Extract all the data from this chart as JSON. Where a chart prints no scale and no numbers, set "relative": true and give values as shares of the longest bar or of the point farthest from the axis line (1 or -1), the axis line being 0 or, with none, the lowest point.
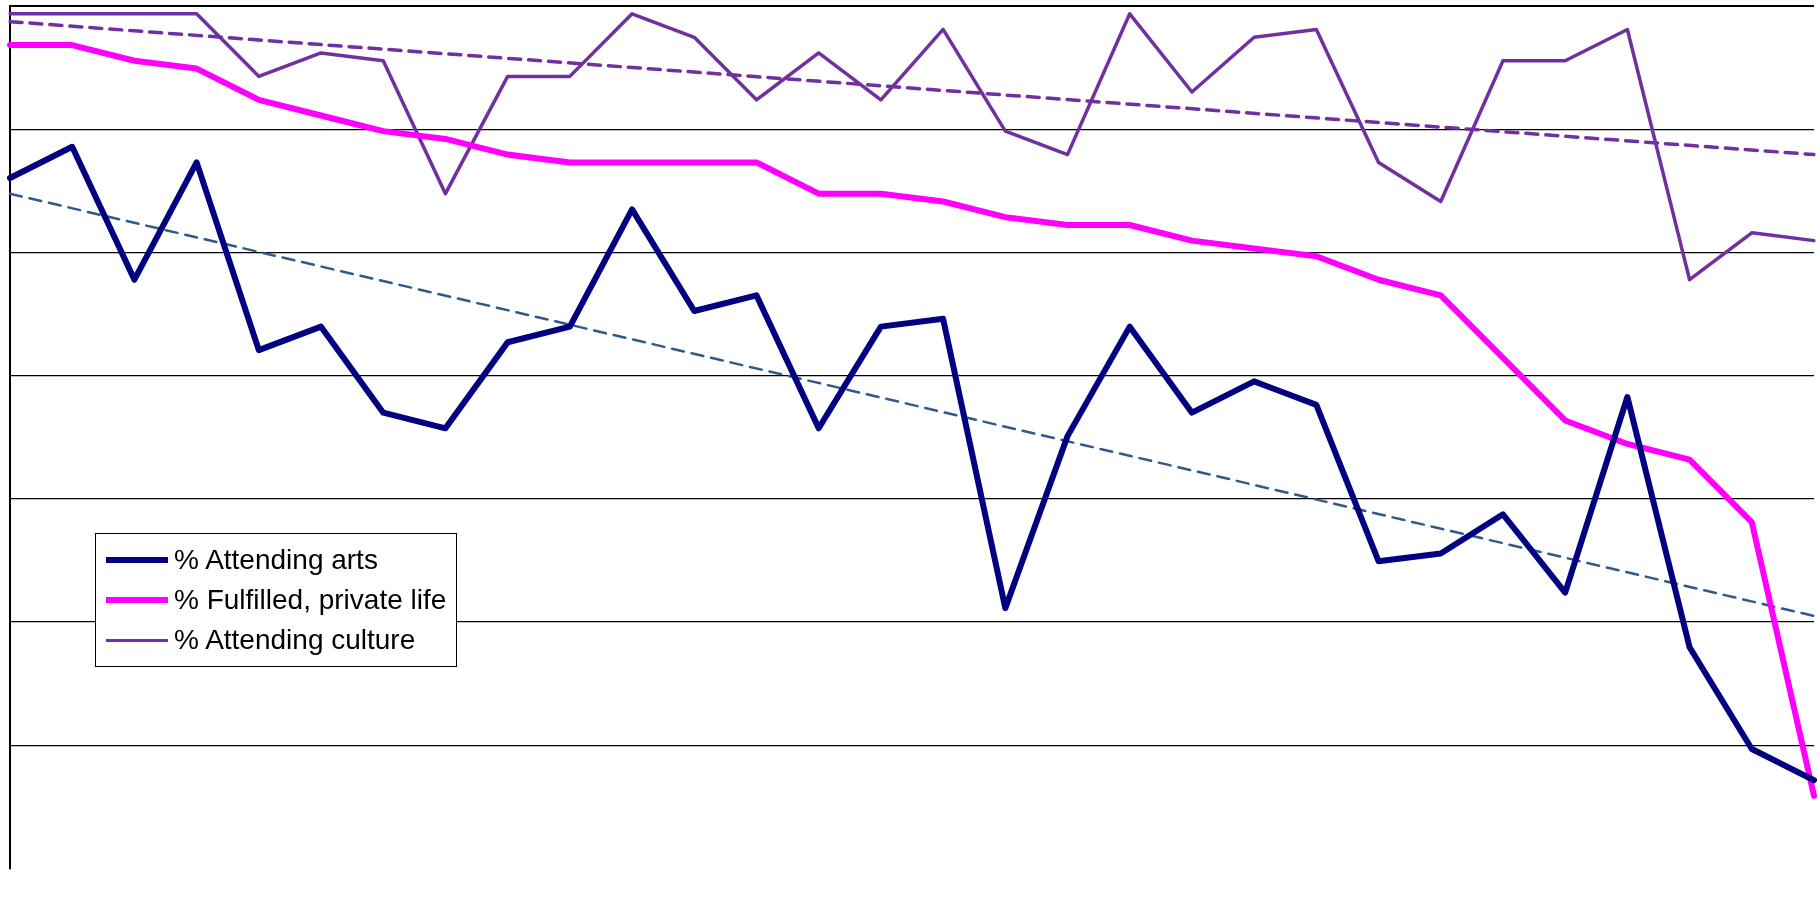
{
  "chart_data": {
    "type": "line",
    "relative": true,
    "grid": "y",
    "legend": "bottom left",
    "marker": "none",
    "categories": [
      null,
      null,
      null,
      null,
      null,
      null,
      null,
      null,
      null,
      null,
      null,
      null,
      null,
      null,
      null,
      null,
      null,
      null,
      null,
      null,
      null,
      null,
      null,
      null,
      null,
      null,
      null,
      null,
      null,
      null
    ],
    "series": [
      {
        "name": "% Attending arts",
        "color": "#000080",
        "values": [
          0.79,
          0.83,
          0.66,
          0.81,
          0.57,
          0.6,
          0.49,
          0.47,
          0.58,
          0.6,
          0.75,
          0.62,
          0.64,
          0.47,
          0.6,
          0.61,
          0.24,
          0.46,
          0.6,
          0.49,
          0.53,
          0.5,
          0.3,
          0.31,
          0.36,
          0.26,
          0.51,
          0.19,
          0.06,
          0.02
        ]
      },
      {
        "name": "% Fulfilled, private life",
        "color": "#ff00ff",
        "values": [
          0.96,
          0.96,
          0.94,
          0.93,
          0.89,
          0.87,
          0.85,
          0.84,
          0.82,
          0.81,
          0.81,
          0.81,
          0.81,
          0.77,
          0.77,
          0.76,
          0.74,
          0.73,
          0.73,
          0.71,
          0.7,
          0.69,
          0.66,
          0.64,
          0.56,
          0.48,
          0.45,
          0.43,
          0.35,
          0
        ]
      },
      {
        "name": "% Attending culture",
        "color": "#7030a0",
        "values": [
          1,
          1,
          1,
          1,
          0.92,
          0.95,
          0.94,
          0.77,
          0.92,
          0.92,
          1,
          0.97,
          0.89,
          0.95,
          0.89,
          0.98,
          0.85,
          0.82,
          1,
          0.9,
          0.97,
          0.98,
          0.81,
          0.76,
          0.94,
          0.94,
          0.98,
          0.66,
          0.72,
          0.71
        ]
      },
      {
        "type": "line",
        "color": "#7030a0",
        "line_style": "dashed",
        "values": [
          0.99,
          null,
          null,
          null,
          null,
          null,
          null,
          null,
          null,
          null,
          null,
          null,
          null,
          null,
          null,
          null,
          null,
          null,
          null,
          null,
          null,
          null,
          null,
          null,
          null,
          null,
          null,
          null,
          null,
          0.82
        ]
      },
      {
        "type": "line",
        "color": "#2f5a8a",
        "line_style": "dashed",
        "values": [
          0.77,
          null,
          null,
          null,
          null,
          null,
          null,
          null,
          null,
          null,
          null,
          null,
          null,
          null,
          null,
          null,
          null,
          null,
          null,
          null,
          null,
          null,
          null,
          null,
          null,
          null,
          null,
          null,
          null,
          0.23
        ]
      }
    ]
  }
}
